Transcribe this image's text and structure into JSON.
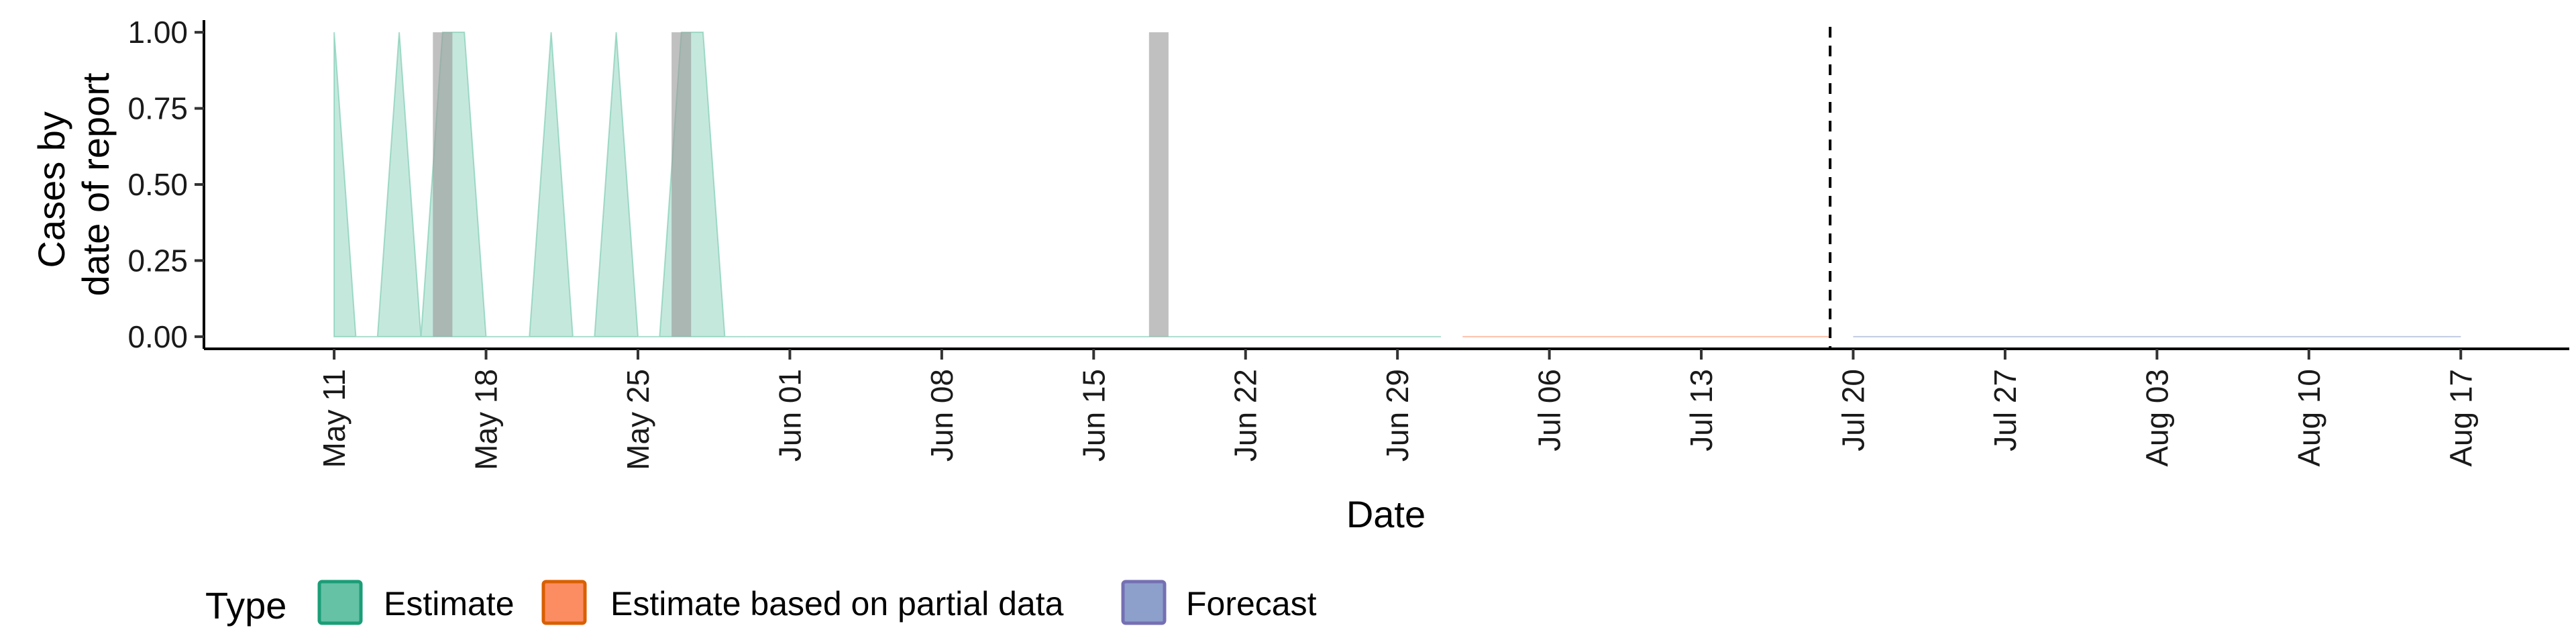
{
  "chart_data": {
    "type": "area",
    "xlabel": "Date",
    "ylabel_lines": [
      "Cases by",
      "date of report"
    ],
    "x_ticks": [
      "May 11",
      "May 18",
      "May 25",
      "Jun 01",
      "Jun 08",
      "Jun 15",
      "Jun 22",
      "Jun 29",
      "Jul 06",
      "Jul 13",
      "Jul 20",
      "Jul 27",
      "Aug 03",
      "Aug 10",
      "Aug 17"
    ],
    "y_ticks": [
      "0.00",
      "0.25",
      "0.50",
      "0.75",
      "1.00"
    ],
    "y_tick_values": [
      0,
      0.25,
      0.5,
      0.75,
      1.0
    ],
    "x_range": [
      "2020-05-05",
      "2020-08-22"
    ],
    "ylim": [
      -0.04,
      1.04
    ],
    "forecast_start": "2020-07-19",
    "series": [
      {
        "name": "Estimate",
        "color": "#66c2a5",
        "segments": [
          {
            "x": [
              "2020-05-11",
              "2020-05-12",
              "2020-05-13",
              "2020-05-14",
              "2020-05-15",
              "2020-05-16",
              "2020-05-17",
              "2020-05-18",
              "2020-05-19",
              "2020-05-20",
              "2020-05-21",
              "2020-05-22",
              "2020-05-23",
              "2020-05-24",
              "2020-05-25",
              "2020-05-26",
              "2020-05-27",
              "2020-05-28",
              "2020-05-29",
              "2020-05-30"
            ],
            "y": [
              1,
              0,
              0,
              1,
              0,
              1,
              1,
              0,
              0,
              0,
              1,
              0,
              0,
              1,
              0,
              0,
              1,
              1,
              0,
              0
            ]
          },
          {
            "x": [
              "2020-05-30",
              "2020-07-01"
            ],
            "y": [
              0,
              0
            ]
          }
        ]
      },
      {
        "name": "Estimate based on partial data",
        "color": "#fc8d62",
        "segments": [
          {
            "x": [
              "2020-07-02",
              "2020-07-19"
            ],
            "y": [
              0,
              0
            ]
          }
        ]
      },
      {
        "name": "Forecast",
        "color": "#8da0cb",
        "segments": [
          {
            "x": [
              "2020-07-20",
              "2020-08-17"
            ],
            "y": [
              0,
              0
            ]
          }
        ]
      }
    ],
    "reported_bars": {
      "color": "#999999",
      "x": [
        "2020-05-16",
        "2020-05-27",
        "2020-06-18"
      ],
      "y": [
        1,
        1,
        1
      ]
    },
    "legend": {
      "title": "Type",
      "placement": "bottom",
      "items": [
        {
          "label": "Estimate",
          "fill": "#66c2a5",
          "stroke": "#1b9e77"
        },
        {
          "label": "Estimate based on partial data",
          "fill": "#fc8d62",
          "stroke": "#d95f02"
        },
        {
          "label": "Forecast",
          "fill": "#8da0cb",
          "stroke": "#7570b3"
        }
      ]
    }
  }
}
